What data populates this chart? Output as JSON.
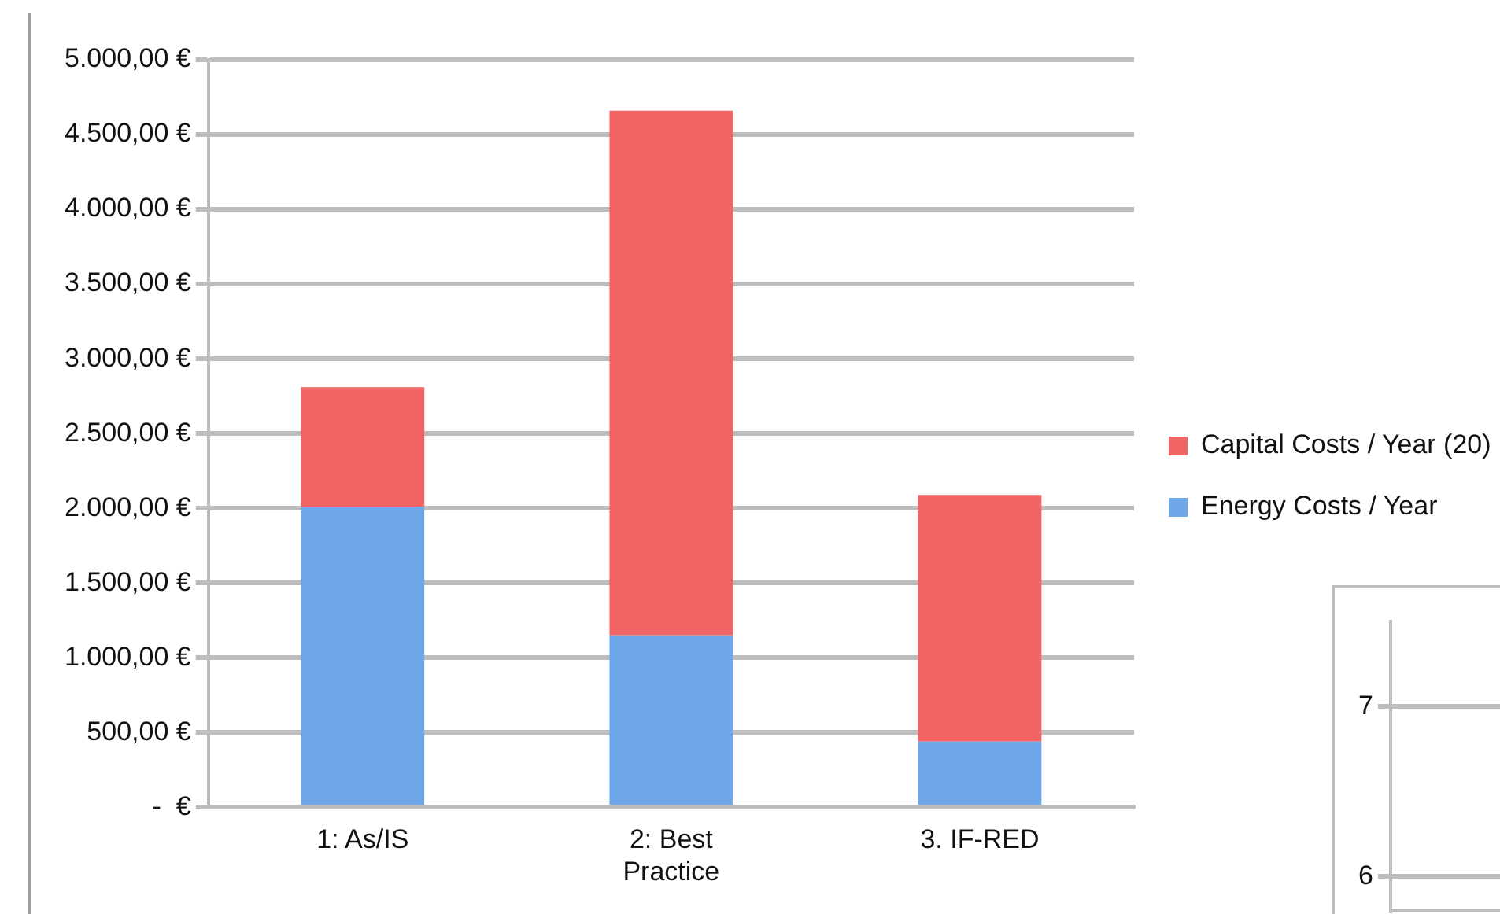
{
  "chart_data": [
    {
      "type": "bar",
      "stacked": true,
      "categories": [
        "1: As/IS",
        "2: Best Practice",
        "3. IF-RED"
      ],
      "series": [
        {
          "name": "Energy Costs / Year",
          "color": "#6fa8e8",
          "values": [
            2010,
            1150,
            440
          ]
        },
        {
          "name": "Capital Costs / Year (20)",
          "color": "#f06464",
          "values": [
            800,
            3510,
            1650
          ]
        }
      ],
      "ylim": [
        0,
        5000
      ],
      "yticks": [
        {
          "value": 0,
          "label": "-  €"
        },
        {
          "value": 500,
          "label": "500,00 €"
        },
        {
          "value": 1000,
          "label": "1.000,00 €"
        },
        {
          "value": 1500,
          "label": "1.500,00 €"
        },
        {
          "value": 2000,
          "label": "2.000,00 €"
        },
        {
          "value": 2500,
          "label": "2.500,00 €"
        },
        {
          "value": 3000,
          "label": "3.000,00 €"
        },
        {
          "value": 3500,
          "label": "3.500,00 €"
        },
        {
          "value": 4000,
          "label": "4.000,00 €"
        },
        {
          "value": 4500,
          "label": "4.500,00 €"
        },
        {
          "value": 5000,
          "label": "5.000,00 €"
        }
      ],
      "grid": "y",
      "legend": "right"
    },
    {
      "type": "line",
      "categories": [
        null
      ],
      "values": [
        null
      ],
      "ylim": [
        5.8,
        7.5
      ],
      "yticks": [
        6,
        7
      ],
      "grid": "y",
      "tick_labels": "y"
    }
  ]
}
